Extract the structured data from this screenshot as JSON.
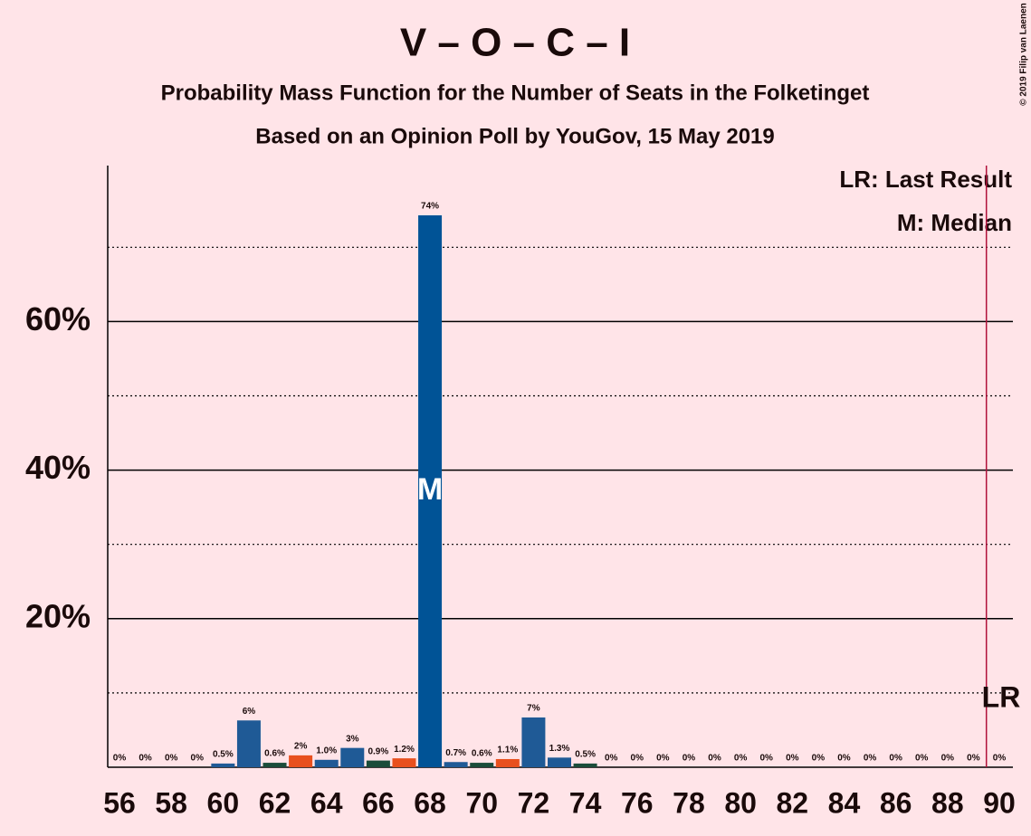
{
  "chart_data": {
    "type": "bar",
    "title": "V – O – C – I",
    "subtitle": "Probability Mass Function for the Number of Seats in the Folketinget",
    "subtitle2": "Based on an Opinion Poll by YouGov, 15 May 2019",
    "credit": "© 2019 Filip van Laenen",
    "legend": [
      "LR: Last Result",
      "M: Median"
    ],
    "categories": [
      56,
      null,
      58,
      null,
      60,
      null,
      62,
      null,
      64,
      null,
      66,
      null,
      68,
      null,
      70,
      null,
      72,
      null,
      74,
      null,
      76,
      null,
      78,
      null,
      80,
      null,
      82,
      null,
      84,
      null,
      86,
      null,
      88,
      null,
      90
    ],
    "values": [
      0,
      0,
      0,
      0,
      0.5,
      6.3,
      0.6,
      1.6,
      1.0,
      2.6,
      0.9,
      1.2,
      74.3,
      0.7,
      0.6,
      1.1,
      6.7,
      1.3,
      0.5,
      0,
      0,
      0,
      0,
      0,
      0,
      0,
      0,
      0,
      0,
      0,
      0,
      0,
      0,
      0,
      0
    ],
    "value_labels": [
      "0%",
      "0%",
      "0%",
      "0%",
      "0.5%",
      "6%",
      "0.6%",
      "2%",
      "1.0%",
      "3%",
      "0.9%",
      "1.2%",
      "74%",
      "0.7%",
      "0.6%",
      "1.1%",
      "7%",
      "1.3%",
      "0.5%",
      "0%",
      "0%",
      "0%",
      "0%",
      "0%",
      "0%",
      "0%",
      "0%",
      "0%",
      "0%",
      "0%",
      "0%",
      "0%",
      "0%",
      "0%",
      "0%"
    ],
    "colors": [
      "#1f5a96",
      "#1f5a96",
      "#1a4d3a",
      "#e8501e",
      "#1f5a96",
      "#1f5a96",
      "#1a4d3a",
      "#e8501e",
      "#1f5a96",
      "#1f5a96",
      "#1a4d3a",
      "#e8501e",
      "#005396",
      "#1f5a96",
      "#1a4d3a",
      "#e8501e",
      "#1f5a96",
      "#1f5a96",
      "#1a4d3a",
      "#1f5a96",
      "#1f5a96",
      "#1a4d3a",
      "#e8501e",
      "#1f5a96",
      "#1f5a96",
      "#1a4d3a",
      "#e8501e",
      "#1f5a96",
      "#1f5a96",
      "#1a4d3a",
      "#e8501e",
      "#1f5a96",
      "#1f5a96",
      "#1a4d3a",
      "#e8501e"
    ],
    "ylim": [
      0,
      81
    ],
    "yticks": [
      {
        "value": 20,
        "label": "20%"
      },
      {
        "value": 40,
        "label": "40%"
      },
      {
        "value": 60,
        "label": "60%"
      }
    ],
    "minor_yticks": [
      10,
      30,
      50,
      70
    ],
    "median_index": 12,
    "median_label": "M",
    "last_result_index": 34,
    "last_result_label": "LR"
  }
}
